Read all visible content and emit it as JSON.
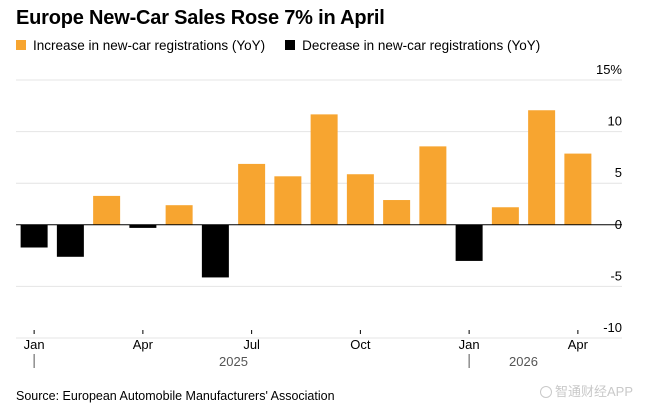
{
  "chart_data": {
    "type": "bar",
    "title": "Europe New-Car Sales Rose 7% in April",
    "legend": [
      {
        "name": "Increase in new-car registrations (YoY)",
        "color": "#f7a530"
      },
      {
        "name": "Decrease in new-car registrations (YoY)",
        "color": "#000000"
      }
    ],
    "legend_position": "top-left",
    "categories": [
      "Jan 2025",
      "Feb 2025",
      "Mar 2025",
      "Apr 2025",
      "May 2025",
      "Jun 2025",
      "Jul 2025",
      "Aug 2025",
      "Sep 2025",
      "Oct 2025",
      "Nov 2025",
      "Dec 2025",
      "Jan 2026",
      "Feb 2026",
      "Mar 2026",
      "Apr 2026"
    ],
    "values": [
      -2.2,
      -3.1,
      2.8,
      -0.3,
      1.9,
      -5.1,
      5.9,
      4.7,
      10.7,
      4.9,
      2.4,
      7.6,
      -3.5,
      1.7,
      11.1,
      6.9
    ],
    "x_tick_labels": [
      {
        "index": 0,
        "label": "Jan"
      },
      {
        "index": 3,
        "label": "Apr"
      },
      {
        "index": 6,
        "label": "Jul"
      },
      {
        "index": 9,
        "label": "Oct"
      },
      {
        "index": 12,
        "label": "Jan"
      },
      {
        "index": 15,
        "label": "Apr"
      }
    ],
    "year_labels": [
      {
        "label": "2025",
        "start": 0,
        "end": 11
      },
      {
        "label": "2026",
        "start": 12,
        "end": 15
      }
    ],
    "y_ticks": [
      15,
      10,
      5,
      0,
      -5,
      -10
    ],
    "y_tick_labels": [
      "15%",
      "10",
      "5",
      "0",
      "-5",
      "-10"
    ],
    "ylim": [
      -10,
      15
    ],
    "y_axis_position": "right",
    "grid": true,
    "colors": {
      "increase": "#f7a530",
      "decrease": "#000000",
      "grid": "#e4e4e4"
    }
  },
  "source": "Source: European Automobile Manufacturers' Association",
  "watermark": "智通财经APP"
}
